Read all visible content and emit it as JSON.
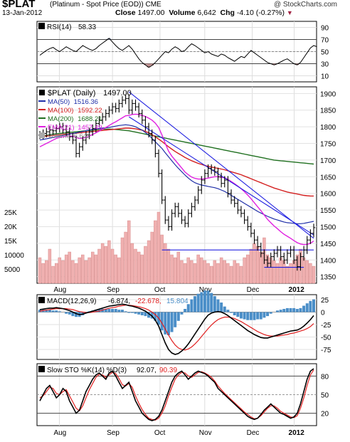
{
  "header": {
    "symbol": "$PLAT",
    "description": "(Platinum  - Spot Price (EOD))",
    "exchange": "CME",
    "copyright": "@ StockCharts.com",
    "date": "13-Jan-2012",
    "close_label": "Close",
    "close_value": "1497.00",
    "volume_label": "Volume",
    "volume_value": "6,642",
    "chg_label": "Chg",
    "chg_value": "-4.10 (-0.27%)"
  },
  "colors": {
    "price": "#000000",
    "ma50": "#1f2fa8",
    "ma100": "#d42020",
    "ma200": "#207020",
    "ema21": "#e020e0",
    "trend": "#2020e0",
    "volume": "#f0b0b0",
    "macd_hist": "#4a8ec8"
  },
  "chart_data": [
    {
      "type": "line",
      "title": "RSI(14) 58.33",
      "legend_label": "RSI(14)",
      "legend_value": "58.33",
      "y_ticks": [
        10,
        30,
        50,
        70,
        90
      ],
      "ylim": [
        0,
        100
      ],
      "levels": [
        30,
        70
      ],
      "series": [
        {
          "name": "RSI(14)",
          "values": [
            44,
            48,
            52,
            55,
            57,
            53,
            50,
            54,
            58,
            55,
            52,
            50,
            55,
            60,
            57,
            54,
            52,
            55,
            60,
            64,
            68,
            72,
            66,
            60,
            55,
            52,
            56,
            60,
            54,
            46,
            38,
            32,
            28,
            24,
            27,
            32,
            38,
            44,
            50,
            48,
            54,
            58,
            55,
            50,
            52,
            58,
            63,
            60,
            56,
            52,
            48,
            50,
            46,
            44,
            42,
            46,
            44,
            40,
            37,
            34,
            38,
            42,
            40,
            46,
            52,
            48,
            44,
            40,
            36,
            32,
            30,
            28,
            30,
            33,
            36,
            38,
            34,
            30,
            28,
            32,
            40,
            48,
            56,
            60,
            58
          ]
        }
      ]
    },
    {
      "type": "candlestick",
      "title": "$PLAT (Daily) 1497.00",
      "x_ticks": [
        "Aug",
        "Sep",
        "Oct",
        "Nov",
        "Dec",
        "2012"
      ],
      "y_ticks_price": [
        1350,
        1400,
        1450,
        1500,
        1550,
        1600,
        1650,
        1700,
        1750,
        1800,
        1850,
        1900
      ],
      "ylim_price": [
        1330,
        1920
      ],
      "y_ticks_volume": [
        "5000",
        "10000",
        "15K",
        "20K",
        "25K"
      ],
      "legend": [
        {
          "label": "$PLAT (Daily)",
          "value": "1497.00"
        },
        {
          "label": "MA(50)",
          "value": "1516.36"
        },
        {
          "label": "MA(100)",
          "value": "1592.22"
        },
        {
          "label": "MA(200)",
          "value": "1688.21"
        },
        {
          "label": "EMA(21)",
          "value": "1457.49"
        },
        {
          "label": "Volume",
          "value": "6,642"
        }
      ],
      "close": [
        1775,
        1780,
        1785,
        1790,
        1788,
        1795,
        1800,
        1792,
        1785,
        1770,
        1760,
        1720,
        1740,
        1760,
        1775,
        1785,
        1795,
        1810,
        1820,
        1830,
        1840,
        1850,
        1860,
        1855,
        1870,
        1880,
        1885,
        1850,
        1870,
        1860,
        1840,
        1820,
        1800,
        1780,
        1760,
        1720,
        1660,
        1580,
        1520,
        1500,
        1540,
        1560,
        1540,
        1520,
        1510,
        1540,
        1560,
        1580,
        1610,
        1640,
        1660,
        1675,
        1670,
        1665,
        1650,
        1630,
        1640,
        1600,
        1580,
        1570,
        1550,
        1540,
        1520,
        1500,
        1480,
        1460,
        1440,
        1420,
        1400,
        1390,
        1410,
        1420,
        1430,
        1410,
        1400,
        1420,
        1430,
        1400,
        1380,
        1410,
        1430,
        1460,
        1480,
        1497
      ],
      "ma50": [
        1760,
        1762,
        1764,
        1766,
        1768,
        1770,
        1772,
        1774,
        1776,
        1778,
        1780,
        1782,
        1784,
        1786,
        1788,
        1790,
        1792,
        1794,
        1795,
        1796,
        1797,
        1798,
        1800,
        1802,
        1804,
        1805,
        1806,
        1805,
        1803,
        1800,
        1795,
        1790,
        1783,
        1775,
        1765,
        1755,
        1745,
        1735,
        1722,
        1710,
        1698,
        1686,
        1675,
        1665,
        1655,
        1646,
        1638,
        1632,
        1628,
        1625,
        1623,
        1621,
        1619,
        1617,
        1614,
        1610,
        1606,
        1600,
        1594,
        1588,
        1582,
        1576,
        1570,
        1564,
        1558,
        1552,
        1546,
        1541,
        1536,
        1531,
        1527,
        1523,
        1520,
        1517,
        1514,
        1512,
        1511,
        1510,
        1509,
        1509,
        1510,
        1512,
        1514,
        1516
      ],
      "ma100": [
        1770,
        1771,
        1772,
        1773,
        1774,
        1775,
        1776,
        1777,
        1778,
        1779,
        1780,
        1781,
        1782,
        1783,
        1784,
        1785,
        1786,
        1787,
        1788,
        1789,
        1790,
        1791,
        1792,
        1793,
        1794,
        1795,
        1796,
        1796,
        1795,
        1794,
        1792,
        1790,
        1786,
        1782,
        1776,
        1770,
        1763,
        1756,
        1748,
        1740,
        1733,
        1726,
        1720,
        1714,
        1708,
        1703,
        1698,
        1694,
        1690,
        1687,
        1684,
        1681,
        1679,
        1677,
        1675,
        1673,
        1671,
        1668,
        1665,
        1662,
        1659,
        1656,
        1652,
        1648,
        1644,
        1640,
        1636,
        1632,
        1628,
        1624,
        1620,
        1616,
        1613,
        1610,
        1607,
        1604,
        1602,
        1600,
        1598,
        1596,
        1594,
        1593,
        1592,
        1592
      ],
      "ma200": [
        1770,
        1772,
        1774,
        1776,
        1778,
        1779,
        1780,
        1781,
        1782,
        1783,
        1784,
        1785,
        1786,
        1787,
        1788,
        1789,
        1790,
        1791,
        1792,
        1793,
        1793,
        1793,
        1793,
        1792,
        1791,
        1790,
        1789,
        1788,
        1786,
        1784,
        1782,
        1780,
        1778,
        1776,
        1774,
        1772,
        1770,
        1768,
        1766,
        1764,
        1762,
        1760,
        1758,
        1756,
        1754,
        1752,
        1750,
        1748,
        1746,
        1744,
        1742,
        1740,
        1738,
        1736,
        1734,
        1732,
        1730,
        1728,
        1726,
        1724,
        1722,
        1720,
        1718,
        1716,
        1714,
        1712,
        1710,
        1708,
        1706,
        1704,
        1702,
        1700,
        1699,
        1698,
        1697,
        1696,
        1695,
        1694,
        1693,
        1692,
        1691,
        1690,
        1689,
        1688
      ],
      "ema21": [
        1740,
        1745,
        1750,
        1755,
        1760,
        1765,
        1768,
        1770,
        1772,
        1772,
        1772,
        1768,
        1765,
        1766,
        1768,
        1772,
        1777,
        1782,
        1787,
        1793,
        1798,
        1804,
        1810,
        1815,
        1821,
        1827,
        1833,
        1834,
        1837,
        1838,
        1837,
        1834,
        1831,
        1826,
        1820,
        1811,
        1798,
        1776,
        1750,
        1727,
        1712,
        1700,
        1688,
        1676,
        1664,
        1656,
        1649,
        1645,
        1643,
        1643,
        1644,
        1646,
        1648,
        1650,
        1650,
        1648,
        1647,
        1642,
        1636,
        1629,
        1622,
        1614,
        1605,
        1595,
        1584,
        1572,
        1560,
        1548,
        1535,
        1522,
        1512,
        1502,
        1494,
        1485,
        1477,
        1471,
        1465,
        1458,
        1452,
        1448,
        1446,
        1447,
        1450,
        1457
      ],
      "volume": [
        9,
        7,
        8,
        12,
        6,
        7,
        9,
        8,
        10,
        11,
        8,
        7,
        9,
        10,
        8,
        9,
        11,
        10,
        12,
        14,
        13,
        15,
        12,
        10,
        9,
        16,
        18,
        22,
        14,
        12,
        11,
        10,
        13,
        15,
        18,
        22,
        25,
        17,
        14,
        12,
        10,
        9,
        11,
        8,
        7,
        9,
        8,
        7,
        10,
        9,
        8,
        7,
        6,
        8,
        7,
        9,
        8,
        7,
        6,
        8,
        7,
        6,
        9,
        10,
        12,
        14,
        13,
        11,
        16,
        10,
        9,
        8,
        7,
        9,
        8,
        6,
        7,
        8,
        10,
        12,
        9,
        8,
        7,
        6
      ],
      "trendlines": [
        {
          "from": [
            27,
            1905
          ],
          "to": [
            83,
            1465
          ]
        },
        {
          "from": [
            27,
            1830
          ],
          "to": [
            83,
            1475
          ]
        }
      ],
      "support_lines": [
        {
          "from": [
            37,
            1430
          ],
          "to": [
            83,
            1430
          ]
        },
        {
          "from": [
            68,
            1378
          ],
          "to": [
            80,
            1378
          ]
        }
      ]
    },
    {
      "type": "line",
      "title": "MACD(12,26,9) -6.874, -22.678, 15.804",
      "legend_label": "MACD(12,26,9)",
      "legend_values": [
        "-6.874,",
        "-22.678,",
        "15.804"
      ],
      "y_ticks": [
        25,
        0,
        -25,
        -50,
        -75
      ],
      "ylim": [
        -95,
        35
      ],
      "series": [
        {
          "name": "MACD",
          "values": [
            5,
            6,
            7,
            8,
            8,
            9,
            8,
            7,
            5,
            3,
            0,
            -3,
            -5,
            -4,
            -2,
            0,
            2,
            4,
            6,
            8,
            10,
            12,
            13,
            14,
            15,
            16,
            15,
            13,
            12,
            10,
            8,
            5,
            2,
            -3,
            -8,
            -16,
            -28,
            -45,
            -62,
            -75,
            -82,
            -85,
            -83,
            -78,
            -72,
            -64,
            -54,
            -44,
            -34,
            -24,
            -14,
            -6,
            -2,
            0,
            1,
            0,
            -3,
            -7,
            -12,
            -17,
            -22,
            -27,
            -32,
            -37,
            -41,
            -45,
            -48,
            -51,
            -52,
            -52,
            -50,
            -48,
            -46,
            -44,
            -42,
            -40,
            -38,
            -37,
            -36,
            -33,
            -28,
            -22,
            -15,
            -7
          ]
        },
        {
          "name": "Signal",
          "values": [
            2,
            3,
            4,
            5,
            6,
            7,
            7,
            7,
            7,
            6,
            5,
            3,
            1,
            0,
            -1,
            -1,
            0,
            1,
            2,
            4,
            6,
            8,
            9,
            10,
            12,
            13,
            14,
            14,
            13,
            12,
            11,
            9,
            7,
            4,
            0,
            -5,
            -12,
            -22,
            -34,
            -46,
            -57,
            -66,
            -72,
            -75,
            -76,
            -74,
            -70,
            -64,
            -57,
            -49,
            -41,
            -33,
            -26,
            -20,
            -15,
            -12,
            -10,
            -10,
            -11,
            -13,
            -16,
            -19,
            -23,
            -27,
            -31,
            -35,
            -39,
            -42,
            -45,
            -47,
            -48,
            -48,
            -48,
            -47,
            -46,
            -45,
            -43,
            -42,
            -40,
            -38,
            -36,
            -33,
            -29,
            -23
          ]
        }
      ]
    },
    {
      "type": "line",
      "title": "Slow STO %K(14) %D(3) 92.07, 90.39",
      "legend_label": "Slow STO %K(14) %D(3)",
      "legend_values": [
        "92.07,",
        "90.39"
      ],
      "y_ticks": [
        80,
        50,
        20
      ],
      "ylim": [
        0,
        100
      ],
      "levels": [
        20,
        80
      ],
      "series": [
        {
          "name": "%K",
          "values": [
            40,
            50,
            60,
            65,
            55,
            45,
            50,
            60,
            55,
            40,
            30,
            20,
            25,
            40,
            55,
            65,
            75,
            82,
            85,
            80,
            75,
            85,
            88,
            80,
            70,
            60,
            65,
            70,
            55,
            40,
            30,
            20,
            15,
            10,
            8,
            10,
            15,
            25,
            40,
            55,
            70,
            80,
            85,
            88,
            82,
            75,
            80,
            85,
            88,
            86,
            84,
            80,
            75,
            70,
            60,
            55,
            50,
            45,
            40,
            35,
            30,
            25,
            20,
            15,
            12,
            10,
            12,
            18,
            25,
            30,
            35,
            30,
            25,
            20,
            18,
            15,
            12,
            14,
            20,
            35,
            55,
            75,
            88,
            92
          ]
        },
        {
          "name": "%D",
          "values": [
            45,
            48,
            55,
            62,
            60,
            52,
            50,
            55,
            58,
            48,
            38,
            28,
            24,
            32,
            45,
            58,
            68,
            78,
            83,
            82,
            78,
            82,
            86,
            84,
            76,
            66,
            64,
            68,
            62,
            48,
            36,
            26,
            18,
            12,
            10,
            9,
            12,
            20,
            32,
            48,
            62,
            75,
            82,
            86,
            85,
            80,
            78,
            82,
            86,
            87,
            85,
            82,
            78,
            72,
            64,
            58,
            52,
            47,
            42,
            37,
            32,
            27,
            22,
            18,
            14,
            11,
            12,
            16,
            22,
            28,
            32,
            32,
            28,
            23,
            20,
            17,
            14,
            13,
            16,
            28,
            45,
            65,
            82,
            90
          ]
        }
      ]
    }
  ]
}
